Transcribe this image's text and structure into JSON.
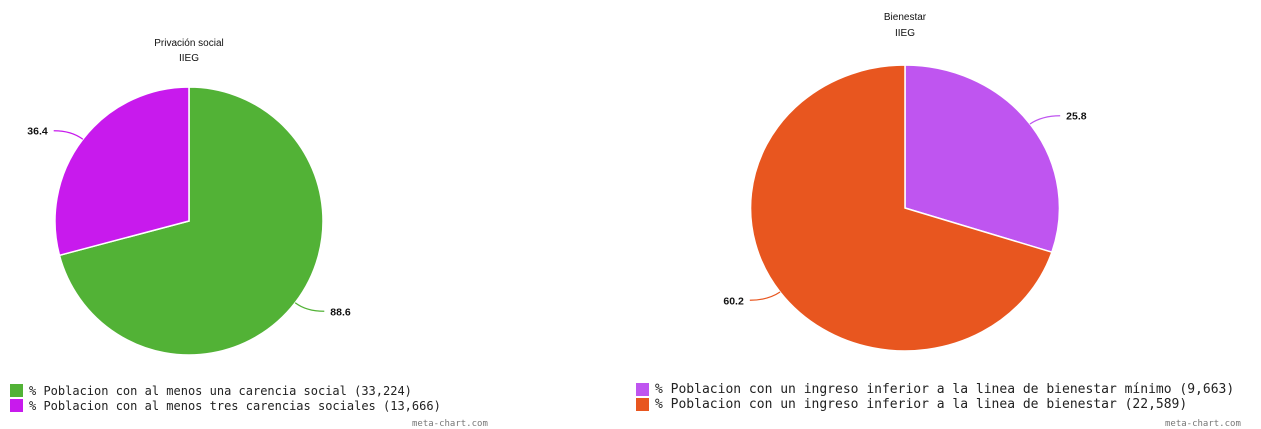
{
  "chart_data": [
    {
      "type": "pie",
      "title": "Privación social",
      "subtitle": "IIEG",
      "slices": [
        {
          "label": "% Poblacion con al menos una carencia social (33,224)",
          "value": 88.6,
          "display": "88.6",
          "color": "#52b236"
        },
        {
          "label": "% Poblacion con al menos tres carencias sociales (13,666)",
          "value": 36.4,
          "display": "36.4",
          "color": "#c81aed"
        }
      ],
      "legend": "bottom-left",
      "credit": "meta-chart.com"
    },
    {
      "type": "pie",
      "title": "Bienestar",
      "subtitle": "IIEG",
      "slices": [
        {
          "label": "% Poblacion con un ingreso inferior a la linea de bienestar mínimo (9,663)",
          "value": 25.8,
          "display": "25.8",
          "color": "#bf55f0"
        },
        {
          "label": "% Poblacion con un ingreso inferior a la linea de bienestar (22,589)",
          "value": 60.2,
          "display": "60.2",
          "color": "#e8561f"
        }
      ],
      "legend": "bottom-left",
      "credit": "meta-chart.com"
    }
  ]
}
